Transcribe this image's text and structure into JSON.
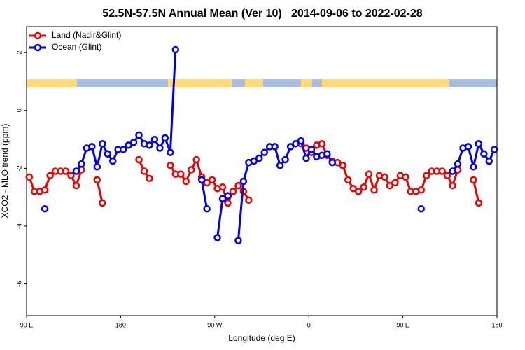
{
  "chart_data": {
    "type": "line",
    "title": "52.5N-57.5N Annual Mean (Ver 10)   2014-09-06 to 2022-02-28",
    "x_label": "Longitude (deg E)",
    "y_label": "XCO2 - MLO trend (ppm)",
    "xlim": [
      90,
      540
    ],
    "ylim": [
      -7.1,
      2.9
    ],
    "xticks": [
      {
        "value": 90,
        "label": "90 E"
      },
      180,
      {
        "value": 270,
        "label": "90 W"
      },
      {
        "value": 360,
        "label": "0"
      },
      {
        "value": 450,
        "label": "90 E"
      },
      {
        "value": 540,
        "label": "180"
      }
    ],
    "yticks": [
      -6,
      -4,
      -2,
      0,
      2
    ],
    "legend": "top-left",
    "series": [
      {
        "name": "Land (Nadir&Glint)",
        "color": "#ee0000",
        "x": [
          92.5,
          97.5,
          102.5,
          107.5,
          112.5,
          117.5,
          122.5,
          127.5,
          132.5,
          137.5,
          142.5,
          null,
          157.5,
          162.5,
          null,
          197.5,
          202.5,
          207.5,
          null,
          227.5,
          232.5,
          237.5,
          242.5,
          247.5,
          252.5,
          257.5,
          262.5,
          267.5,
          272.5,
          277.5,
          282.5,
          287.5,
          292.5,
          297.5,
          302.5,
          null,
          352.5,
          357.5,
          362.5,
          367.5,
          372.5,
          377.5,
          382.5,
          387.5,
          392.5,
          397.5,
          402.5,
          407.5,
          412.5,
          417.5,
          422.5,
          427.5,
          432.5,
          437.5,
          442.5,
          447.5,
          452.5,
          457.5,
          462.5,
          467.5,
          472.5,
          477.5,
          482.5,
          487.5,
          492.5,
          497.5,
          502.5,
          null,
          517.5,
          522.5
        ],
        "values": [
          -2.3,
          -2.8,
          -2.8,
          -2.75,
          -2.25,
          -2.1,
          -2.1,
          -2.1,
          -2.25,
          -2.6,
          -2.05,
          null,
          -2.4,
          -3.2,
          null,
          -1.7,
          -2.1,
          -2.35,
          null,
          -1.9,
          -2.2,
          -2.2,
          -2.45,
          -2.05,
          -1.7,
          -2.3,
          -2.5,
          -2.4,
          -2.7,
          -2.65,
          -3.2,
          -2.8,
          -2.6,
          -2.8,
          -3.1,
          null,
          -1.15,
          -1.3,
          -1.45,
          -1.2,
          -1.15,
          -1.55,
          -1.75,
          -1.8,
          -1.9,
          -2.4,
          -2.7,
          -2.8,
          -2.65,
          -2.2,
          -2.75,
          -2.25,
          -2.3,
          -2.6,
          -2.5,
          -2.25,
          -2.3,
          -2.8,
          -2.8,
          -2.75,
          -2.25,
          -2.1,
          -2.1,
          -2.1,
          -2.25,
          -2.6,
          -2.05,
          null,
          -2.4,
          -3.2
        ]
      },
      {
        "name": "Ocean (Glint)",
        "color": "#0000ee",
        "x": [
          107.5,
          null,
          137.5,
          142.5,
          147.5,
          152.5,
          157.5,
          162.5,
          167.5,
          172.5,
          177.5,
          182.5,
          187.5,
          192.5,
          197.5,
          202.5,
          207.5,
          212.5,
          217.5,
          222.5,
          227.5,
          232.5,
          null,
          257.5,
          262.5,
          null,
          272.5,
          277.5,
          282.5,
          null,
          292.5,
          297.5,
          302.5,
          307.5,
          312.5,
          317.5,
          322.5,
          327.5,
          332.5,
          337.5,
          342.5,
          347.5,
          352.5,
          357.5,
          362.5,
          367.5,
          372.5,
          377.5,
          382.5,
          null,
          467.5,
          null,
          497.5,
          502.5,
          507.5,
          512.5,
          517.5,
          522.5,
          527.5,
          532.5,
          537.5
        ],
        "values": [
          -3.4,
          null,
          -2.1,
          -1.85,
          -1.3,
          -1.25,
          -1.95,
          -1.15,
          -1.5,
          -1.75,
          -1.35,
          -1.35,
          -1.2,
          -1.1,
          -0.85,
          -1.15,
          -1.2,
          -1.0,
          -1.3,
          -0.95,
          -1.45,
          2.1,
          null,
          -2.4,
          -3.4,
          null,
          -4.4,
          -3.05,
          -2.95,
          null,
          -4.5,
          -2.45,
          -1.8,
          -1.75,
          -1.65,
          -1.45,
          -1.25,
          -1.25,
          -1.9,
          -1.7,
          -1.25,
          -1.15,
          -1.05,
          -1.65,
          -1.35,
          -1.6,
          -1.55,
          -1.5,
          -1.8,
          null,
          -3.4,
          null,
          -2.1,
          -1.85,
          -1.3,
          -1.25,
          -1.95,
          -1.15,
          -1.5,
          -1.75,
          -1.35
        ]
      }
    ]
  }
}
